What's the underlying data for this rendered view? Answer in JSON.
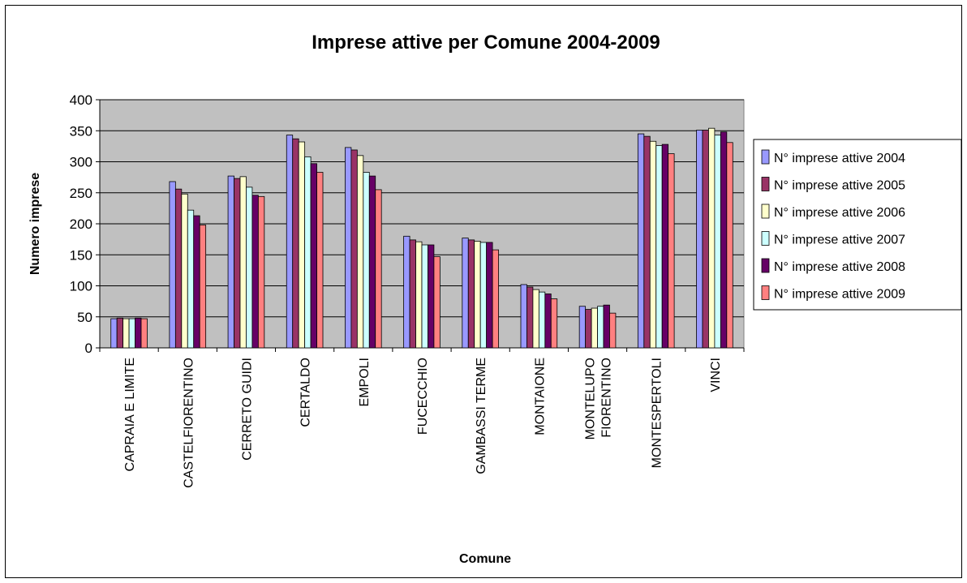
{
  "chart_data": {
    "type": "bar",
    "title": "Imprese attive per Comune 2004-2009",
    "xlabel": "Comune",
    "ylabel": "Numero imprese",
    "ylim": [
      0,
      400
    ],
    "yticks": [
      0,
      50,
      100,
      150,
      200,
      250,
      300,
      350,
      400
    ],
    "grid": true,
    "legend_position": "right",
    "plot_background": "#c0c0c0",
    "categories": [
      "CAPRAIA E LIMITE",
      "CASTELFIORENTINO",
      "CERRETO GUIDI",
      "CERTALDO",
      "EMPOLI",
      "FUCECCHIO",
      "GAMBASSI TERME",
      "MONTAIONE",
      "MONTELUPO FIORENTINO",
      "MONTESPERTOLI",
      "VINCI"
    ],
    "category_lines": [
      [
        "CAPRAIA E LIMITE"
      ],
      [
        "CASTELFIORENTINO"
      ],
      [
        "CERRETO GUIDI"
      ],
      [
        "CERTALDO"
      ],
      [
        "EMPOLI"
      ],
      [
        "FUCECCHIO"
      ],
      [
        "GAMBASSI TERME"
      ],
      [
        "MONTAIONE"
      ],
      [
        "MONTELUPO",
        "FIORENTINO"
      ],
      [
        "MONTESPERTOLI"
      ],
      [
        "VINCI"
      ]
    ],
    "series": [
      {
        "name": "N° imprese attive 2004",
        "color": "#9999ff",
        "values": [
          47,
          268,
          277,
          343,
          323,
          180,
          177,
          102,
          67,
          345,
          351
        ]
      },
      {
        "name": "N° imprese attive 2005",
        "color": "#993366",
        "values": [
          48,
          256,
          273,
          337,
          319,
          174,
          174,
          98,
          62,
          341,
          351
        ]
      },
      {
        "name": "N° imprese attive 2006",
        "color": "#ffffcc",
        "values": [
          47,
          248,
          276,
          332,
          310,
          171,
          172,
          94,
          64,
          333,
          354
        ]
      },
      {
        "name": "N° imprese attive 2007",
        "color": "#ccffff",
        "values": [
          47,
          222,
          259,
          308,
          283,
          166,
          170,
          90,
          67,
          326,
          343
        ]
      },
      {
        "name": "N° imprese attive 2008",
        "color": "#660066",
        "values": [
          48,
          213,
          246,
          297,
          277,
          166,
          170,
          87,
          69,
          328,
          348
        ]
      },
      {
        "name": "N° imprese attive 2009",
        "color": "#ff8080",
        "values": [
          47,
          198,
          244,
          283,
          255,
          147,
          158,
          79,
          56,
          313,
          331
        ]
      }
    ]
  }
}
